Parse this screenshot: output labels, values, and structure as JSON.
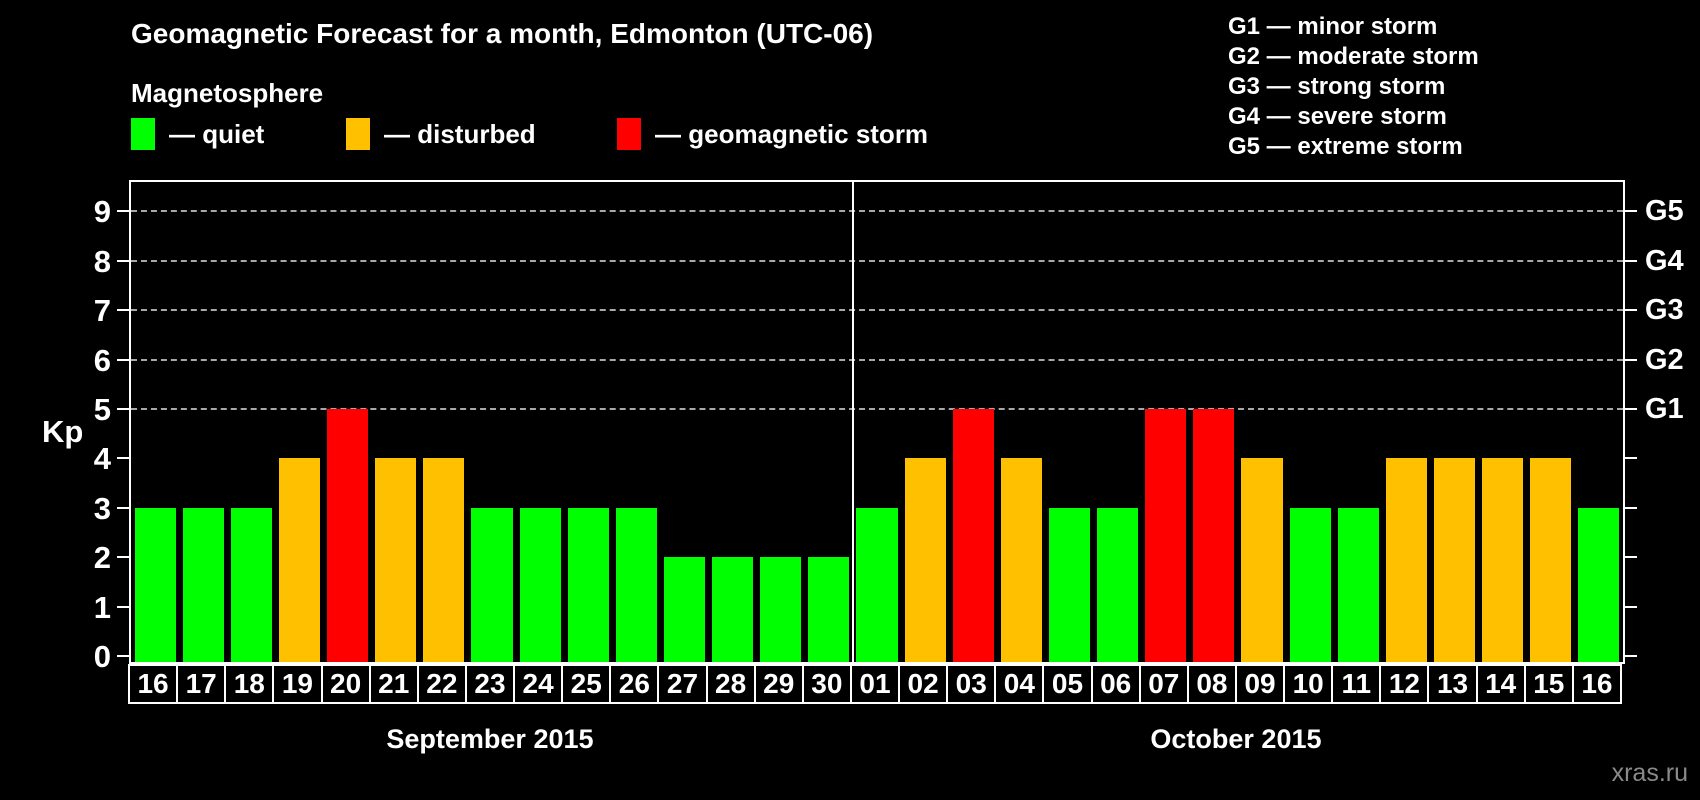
{
  "title": "Geomagnetic Forecast for a month, Edmonton (UTC-06)",
  "magnetosphere_label": "Magnetosphere",
  "kp_legend": [
    {
      "status": "quiet",
      "label": "— quiet",
      "color": "#00ff00"
    },
    {
      "status": "disturbed",
      "label": "— disturbed",
      "color": "#ffc000"
    },
    {
      "status": "storm",
      "label": "— geomagnetic storm",
      "color": "#ff0000"
    }
  ],
  "g_legend": {
    "items": [
      "G1 — minor storm",
      "G2 — moderate storm",
      "G3 — strong storm",
      "G4 — severe storm",
      "G5 — extreme storm"
    ]
  },
  "watermark": "xras.ru",
  "chart_data": {
    "type": "bar",
    "title": "Geomagnetic Forecast for a month, Edmonton (UTC-06)",
    "ylabel": "Kp",
    "ylim": [
      0,
      9.5
    ],
    "y_ticks": [
      0,
      1,
      2,
      3,
      4,
      5,
      6,
      7,
      8,
      9
    ],
    "grid_levels": [
      5,
      6,
      7,
      8,
      9
    ],
    "right_axis_labels": [
      {
        "kp": 5,
        "text": "G1"
      },
      {
        "kp": 6,
        "text": "G2"
      },
      {
        "kp": 7,
        "text": "G3"
      },
      {
        "kp": 8,
        "text": "G4"
      },
      {
        "kp": 9,
        "text": "G5"
      }
    ],
    "status_colors": {
      "quiet": "#00ff00",
      "disturbed": "#ffc000",
      "storm": "#ff0000"
    },
    "grid_on": true,
    "legend_position": "top",
    "months": [
      {
        "label": "September 2015",
        "days": [
          {
            "date": "16",
            "kp": 3,
            "status": "quiet"
          },
          {
            "date": "17",
            "kp": 3,
            "status": "quiet"
          },
          {
            "date": "18",
            "kp": 3,
            "status": "quiet"
          },
          {
            "date": "19",
            "kp": 4,
            "status": "disturbed"
          },
          {
            "date": "20",
            "kp": 5,
            "status": "storm"
          },
          {
            "date": "21",
            "kp": 4,
            "status": "disturbed"
          },
          {
            "date": "22",
            "kp": 4,
            "status": "disturbed"
          },
          {
            "date": "23",
            "kp": 3,
            "status": "quiet"
          },
          {
            "date": "24",
            "kp": 3,
            "status": "quiet"
          },
          {
            "date": "25",
            "kp": 3,
            "status": "quiet"
          },
          {
            "date": "26",
            "kp": 3,
            "status": "quiet"
          },
          {
            "date": "27",
            "kp": 2,
            "status": "quiet"
          },
          {
            "date": "28",
            "kp": 2,
            "status": "quiet"
          },
          {
            "date": "29",
            "kp": 2,
            "status": "quiet"
          },
          {
            "date": "30",
            "kp": 2,
            "status": "quiet"
          }
        ]
      },
      {
        "label": "October 2015",
        "days": [
          {
            "date": "01",
            "kp": 3,
            "status": "quiet"
          },
          {
            "date": "02",
            "kp": 4,
            "status": "disturbed"
          },
          {
            "date": "03",
            "kp": 5,
            "status": "storm"
          },
          {
            "date": "04",
            "kp": 4,
            "status": "disturbed"
          },
          {
            "date": "05",
            "kp": 3,
            "status": "quiet"
          },
          {
            "date": "06",
            "kp": 3,
            "status": "quiet"
          },
          {
            "date": "07",
            "kp": 5,
            "status": "storm"
          },
          {
            "date": "08",
            "kp": 5,
            "status": "storm"
          },
          {
            "date": "09",
            "kp": 4,
            "status": "disturbed"
          },
          {
            "date": "10",
            "kp": 3,
            "status": "quiet"
          },
          {
            "date": "11",
            "kp": 3,
            "status": "quiet"
          },
          {
            "date": "12",
            "kp": 4,
            "status": "disturbed"
          },
          {
            "date": "13",
            "kp": 4,
            "status": "disturbed"
          },
          {
            "date": "14",
            "kp": 4,
            "status": "disturbed"
          },
          {
            "date": "15",
            "kp": 4,
            "status": "disturbed"
          },
          {
            "date": "16",
            "kp": 3,
            "status": "quiet"
          }
        ]
      }
    ]
  }
}
